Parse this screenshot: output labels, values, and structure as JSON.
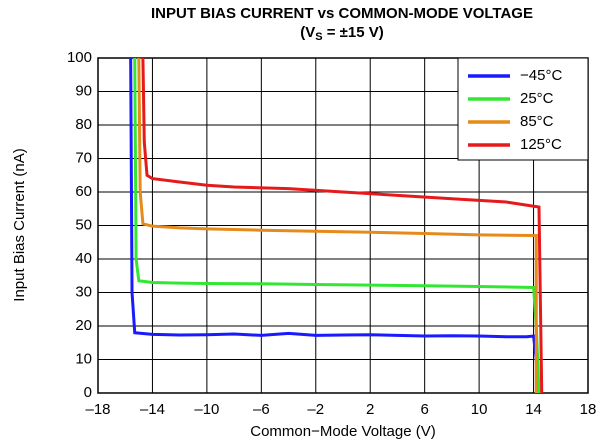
{
  "chart_data": {
    "type": "line",
    "title": "INPUT BIAS CURRENT vs COMMON-MODE VOLTAGE",
    "subtitle_parts": [
      "(V",
      "S",
      " = ±15 V)"
    ],
    "x_label": "Common−Mode Voltage (V)",
    "y_label": "Input Bias Current (nA)",
    "xlim": [
      -18,
      18
    ],
    "ylim": [
      0,
      100
    ],
    "xticks": [
      {
        "value": -18,
        "label": "–18"
      },
      {
        "value": -14,
        "label": "–14"
      },
      {
        "value": -10,
        "label": "–10"
      },
      {
        "value": -6,
        "label": "–6"
      },
      {
        "value": -2,
        "label": "–2"
      },
      2,
      6,
      10,
      14,
      18
    ],
    "yticks": [
      0,
      10,
      20,
      30,
      40,
      50,
      60,
      70,
      80,
      90,
      100
    ],
    "grid": true,
    "legend": "top-right",
    "series": [
      {
        "name": "−45°C",
        "color": "#1a1aff",
        "x": [
          -15.6,
          -15.5,
          -15.3,
          -14,
          -12,
          -10,
          -8,
          -6,
          -4,
          -2,
          0,
          2,
          4,
          6,
          8,
          10,
          12,
          13.5,
          14,
          14.2,
          14.3
        ],
        "values": [
          100,
          30,
          18,
          17.5,
          17.3,
          17.4,
          17.6,
          17.2,
          17.8,
          17.2,
          17.3,
          17.4,
          17.2,
          17,
          17.1,
          17,
          16.8,
          16.8,
          17,
          10,
          0
        ]
      },
      {
        "name": "25°C",
        "color": "#33e633",
        "x": [
          -15.3,
          -15.2,
          -15,
          -14,
          -12,
          -10,
          -6,
          -2,
          2,
          6,
          10,
          14,
          14.2,
          14.4
        ],
        "values": [
          100,
          40,
          33.5,
          33,
          32.8,
          32.7,
          32.6,
          32.4,
          32.2,
          32,
          31.8,
          31.5,
          20,
          0
        ]
      },
      {
        "name": "85°C",
        "color": "#e68a1a",
        "x": [
          -15.0,
          -14.9,
          -14.7,
          -14,
          -12,
          -10,
          -6,
          -2,
          2,
          6,
          10,
          14,
          14.2,
          14.2
        ],
        "values": [
          100,
          60,
          50.5,
          49.8,
          49.3,
          49,
          48.6,
          48.3,
          48,
          47.6,
          47.2,
          47,
          47,
          0
        ]
      },
      {
        "name": "125°C",
        "color": "#e61a1a",
        "x": [
          -14.7,
          -14.6,
          -14.4,
          -14,
          -12,
          -10,
          -8,
          -4,
          0,
          4,
          8,
          12,
          14.4,
          14.6
        ],
        "values": [
          100,
          75,
          65,
          64,
          63,
          62,
          61.5,
          61,
          60,
          59,
          58,
          57,
          55.5,
          0
        ]
      }
    ]
  }
}
